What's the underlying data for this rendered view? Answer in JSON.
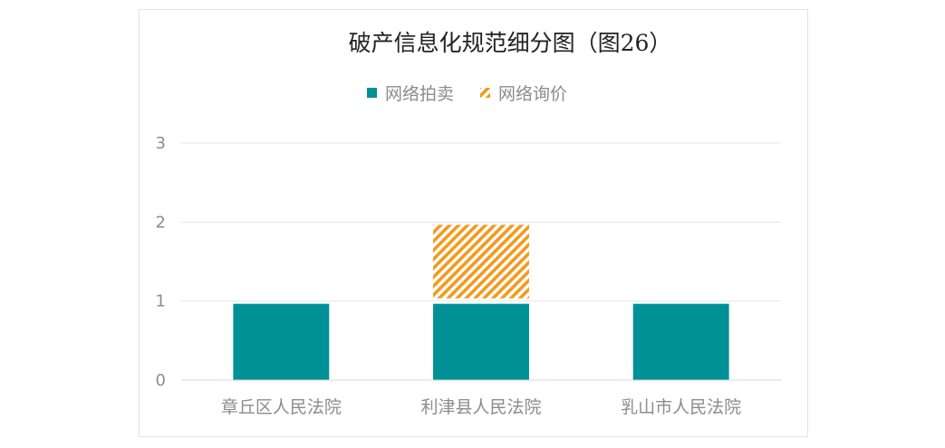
{
  "chart_data": {
    "type": "bar",
    "stacked": true,
    "title": "破产信息化规范细分图（图26）",
    "categories": [
      "章丘区人民法院",
      "利津县人民法院",
      "乳山市人民法院"
    ],
    "series": [
      {
        "name": "网络拍卖",
        "values": [
          1,
          1,
          1
        ],
        "color": "#009196",
        "pattern": "solid"
      },
      {
        "name": "网络询价",
        "values": [
          0,
          1,
          0
        ],
        "color": "#f29a1d",
        "pattern": "diagonal-stripes"
      }
    ],
    "ylim": [
      0,
      3
    ],
    "yticks": [
      0,
      1,
      2,
      3
    ],
    "grid": true,
    "legend": "top",
    "xlabel": "",
    "ylabel": ""
  }
}
